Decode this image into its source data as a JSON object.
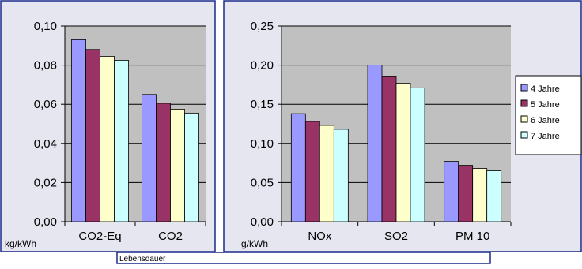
{
  "colors": {
    "panel_bg": "#e6e6f0",
    "panel_border": "#1a2a8a",
    "plot_bg": "#c0c0c0",
    "bar_outline": "#000000",
    "series": [
      "#9999ff",
      "#993366",
      "#ffffcc",
      "#ccffff"
    ]
  },
  "legend": {
    "items": [
      "4 Jahre",
      "5 Jahre",
      "6 Jahre",
      "7 Jahre"
    ]
  },
  "caption": {
    "text": "Lebensdauer"
  },
  "chart_data": [
    {
      "type": "bar",
      "categories": [
        "CO2-Eq",
        "CO2"
      ],
      "series": [
        {
          "name": "4 Jahre",
          "values": [
            0.093,
            0.065
          ]
        },
        {
          "name": "5 Jahre",
          "values": [
            0.088,
            0.0605
          ]
        },
        {
          "name": "6 Jahre",
          "values": [
            0.0845,
            0.0575
          ]
        },
        {
          "name": "7 Jahre",
          "values": [
            0.0825,
            0.0555
          ]
        }
      ],
      "title": "",
      "xlabel": "",
      "ylabel": "",
      "unit_label": "kg/kWh",
      "ylim": [
        0,
        0.1
      ],
      "yticks": [
        "0,00",
        "0,02",
        "0,04",
        "0,06",
        "0,08",
        "0,10"
      ],
      "grid": true,
      "legend": "right"
    },
    {
      "type": "bar",
      "categories": [
        "NOx",
        "SO2",
        "PM 10"
      ],
      "series": [
        {
          "name": "4 Jahre",
          "values": [
            0.138,
            0.2,
            0.077
          ]
        },
        {
          "name": "5 Jahre",
          "values": [
            0.128,
            0.186,
            0.072
          ]
        },
        {
          "name": "6 Jahre",
          "values": [
            0.123,
            0.177,
            0.068
          ]
        },
        {
          "name": "7 Jahre",
          "values": [
            0.118,
            0.171,
            0.065
          ]
        }
      ],
      "title": "",
      "xlabel": "",
      "ylabel": "",
      "unit_label": "g/kWh",
      "ylim": [
        0,
        0.25
      ],
      "yticks": [
        "0,00",
        "0,05",
        "0,10",
        "0,15",
        "0,20",
        "0,25"
      ],
      "grid": true,
      "legend": "right"
    }
  ]
}
